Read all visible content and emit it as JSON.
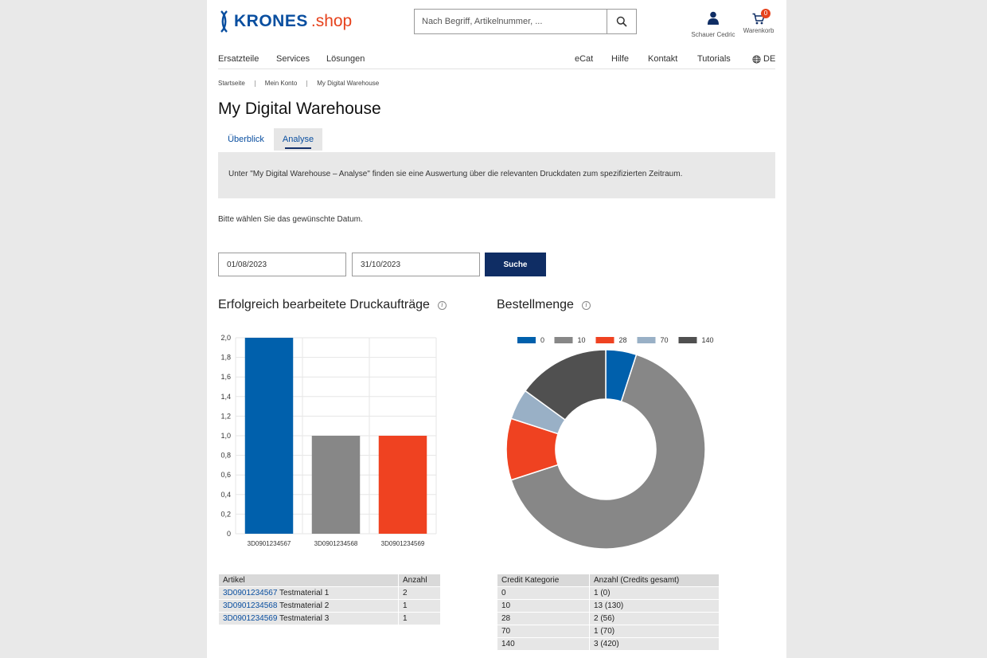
{
  "brand": {
    "name": "KRONES",
    "suffix": ".shop"
  },
  "search": {
    "placeholder": "Nach Begriff, Artikelnummer, ..."
  },
  "header": {
    "user_label": "Schauer Cedric",
    "cart_label": "Warenkorb",
    "cart_count": "0"
  },
  "nav": {
    "left": [
      "Ersatzteile",
      "Services",
      "Lösungen"
    ],
    "right": [
      "eCat",
      "Hilfe",
      "Kontakt",
      "Tutorials"
    ],
    "language": "DE"
  },
  "breadcrumb": [
    "Startseite",
    "Mein Konto",
    "My Digital Warehouse"
  ],
  "page_title": "My Digital Warehouse",
  "tabs": [
    {
      "label": "Überblick",
      "active": false
    },
    {
      "label": "Analyse",
      "active": true
    }
  ],
  "info_text": "Unter \"My Digital Warehouse – Analyse\" finden sie eine Auswertung über die relevanten Druckdaten zum spezifizierten Zeitraum.",
  "date_prompt": "Bitte wählen Sie das gewünschte Datum.",
  "filters": {
    "date_from": "01/08/2023",
    "date_to": "31/10/2023",
    "search_label": "Suche"
  },
  "colors": {
    "blue": "#0060ac",
    "gray": "#878787",
    "red": "#ef4221",
    "lightblue": "#99b0c6",
    "darkgray": "#505050",
    "navy": "#0f2d64"
  },
  "chart_data": [
    {
      "type": "bar",
      "title": "Erfolgreich bearbeitete Druckaufträge",
      "categories": [
        "3D0901234567",
        "3D0901234568",
        "3D0901234569"
      ],
      "values": [
        2,
        1,
        1
      ],
      "colors": [
        "#0060ac",
        "#878787",
        "#ef4221"
      ],
      "ylim": [
        0,
        2
      ],
      "yticks": [
        "0",
        "0,2",
        "0,4",
        "0,6",
        "0,8",
        "1,0",
        "1,2",
        "1,4",
        "1,6",
        "1,8",
        "2,0"
      ],
      "grid": true
    },
    {
      "type": "pie",
      "title": "Bestellmenge",
      "labels": [
        "0",
        "10",
        "28",
        "70",
        "140"
      ],
      "values": [
        1,
        13,
        2,
        1,
        3
      ],
      "colors": [
        "#0060ac",
        "#878787",
        "#ef4221",
        "#99b0c6",
        "#505050"
      ],
      "legend": "top"
    }
  ],
  "articles_table": {
    "headers": [
      "Artikel",
      "Anzahl"
    ],
    "rows": [
      {
        "id": "3D0901234567",
        "name": "Testmaterial 1",
        "count": "2"
      },
      {
        "id": "3D0901234568",
        "name": "Testmaterial 2",
        "count": "1"
      },
      {
        "id": "3D0901234569",
        "name": "Testmaterial 3",
        "count": "1"
      }
    ]
  },
  "credit_table": {
    "headers": [
      "Credit Kategorie",
      "Anzahl (Credits gesamt)"
    ],
    "rows": [
      {
        "category": "0",
        "amount": "1 (0)"
      },
      {
        "category": "10",
        "amount": "13 (130)"
      },
      {
        "category": "28",
        "amount": "2 (56)"
      },
      {
        "category": "70",
        "amount": "1 (70)"
      },
      {
        "category": "140",
        "amount": "3 (420)"
      }
    ]
  }
}
